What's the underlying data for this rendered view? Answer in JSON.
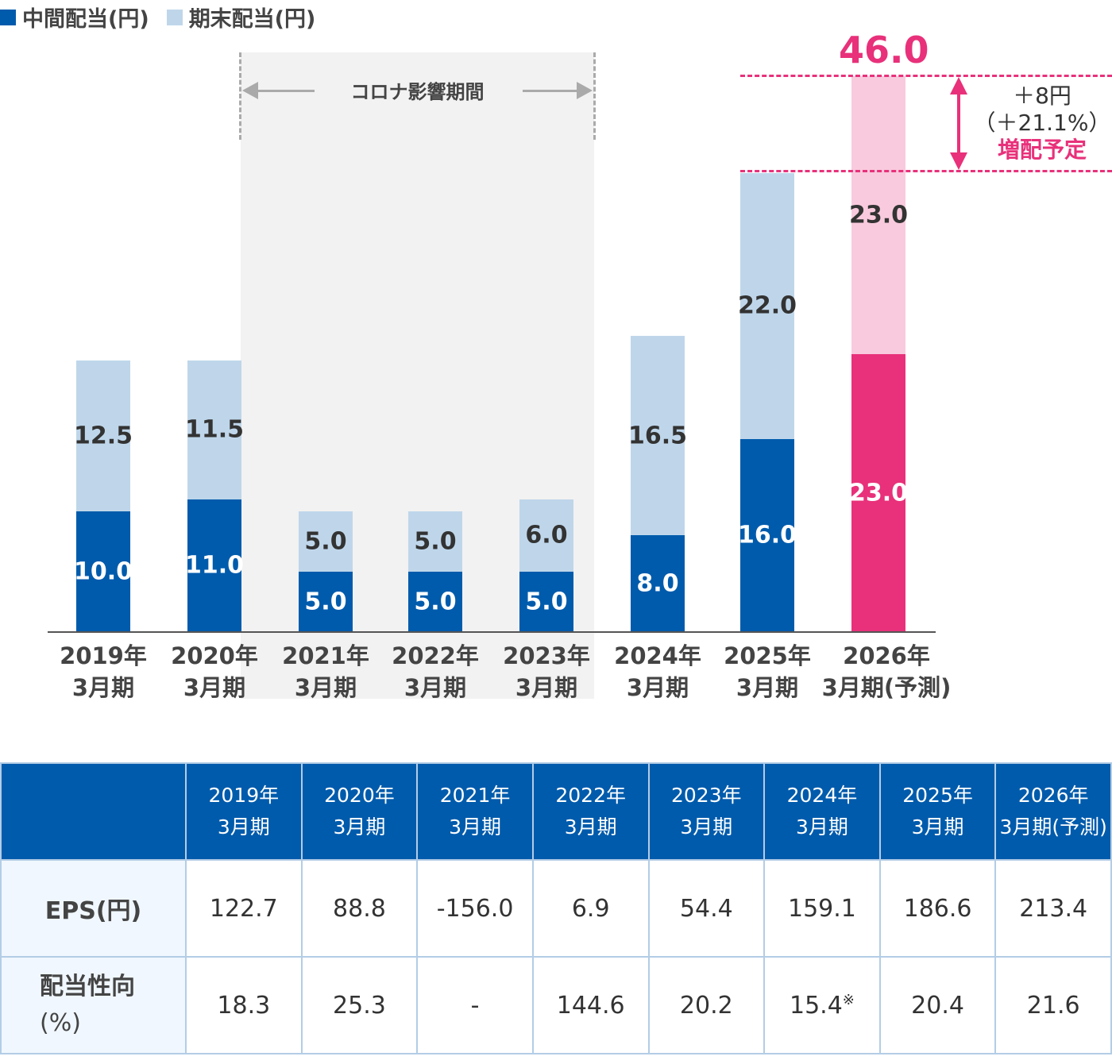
{
  "chart_data": {
    "type": "bar",
    "stacked": true,
    "legend": [
      "中間配当(円)",
      "期末配当(円)"
    ],
    "legend_position": "top-left",
    "categories": [
      [
        "2019年",
        "3月期"
      ],
      [
        "2020年",
        "3月期"
      ],
      [
        "2021年",
        "3月期"
      ],
      [
        "2022年",
        "3月期"
      ],
      [
        "2023年",
        "3月期"
      ],
      [
        "2024年",
        "3月期"
      ],
      [
        "2025年",
        "3月期"
      ],
      [
        "2026年",
        "3月期(予測)"
      ]
    ],
    "series": [
      {
        "name": "中間配当(円)",
        "values": [
          10.0,
          11.0,
          5.0,
          5.0,
          5.0,
          8.0,
          16.0,
          23.0
        ],
        "labels": [
          "10.0",
          "11.0",
          "5.0",
          "5.0",
          "5.0",
          "8.0",
          "16.0",
          "23.0"
        ]
      },
      {
        "name": "期末配当(円)",
        "values": [
          12.5,
          11.5,
          5.0,
          5.0,
          6.0,
          16.5,
          22.0,
          23.0
        ],
        "labels": [
          "12.5",
          "11.5",
          "5.0",
          "5.0",
          "6.0",
          "16.5",
          "22.0",
          "23.0"
        ]
      }
    ],
    "ylim": [
      0,
      46
    ],
    "colors": {
      "interim": "#005bac",
      "final": "#bfd6ea",
      "forecast_interim": "#e8317a",
      "forecast_final": "#f9cadd",
      "shade": "#f2f2f2",
      "accent": "#e8317a"
    },
    "annotations": {
      "covid_period": "コロナ影響期間",
      "total_2026": "46.0",
      "increase": "＋8円",
      "increase_pct": "（＋21.1%）",
      "increase_note": "増配予定"
    }
  },
  "table": {
    "headers": [
      [
        "2019年",
        "3月期"
      ],
      [
        "2020年",
        "3月期"
      ],
      [
        "2021年",
        "3月期"
      ],
      [
        "2022年",
        "3月期"
      ],
      [
        "2023年",
        "3月期"
      ],
      [
        "2024年",
        "3月期"
      ],
      [
        "2025年",
        "3月期"
      ],
      [
        "2026年",
        "3月期(予測)"
      ]
    ],
    "rows": [
      {
        "label": "EPS(円)",
        "values": [
          "122.7",
          "88.8",
          "-156.0",
          "6.9",
          "54.4",
          "159.1",
          "186.6",
          "213.4"
        ]
      },
      {
        "label": "配当性向",
        "label2": "(%)",
        "values": [
          "18.3",
          "25.3",
          "-",
          "144.6",
          "20.2",
          "15.4",
          "20.4",
          "21.6"
        ],
        "note_mark": "※"
      }
    ]
  }
}
